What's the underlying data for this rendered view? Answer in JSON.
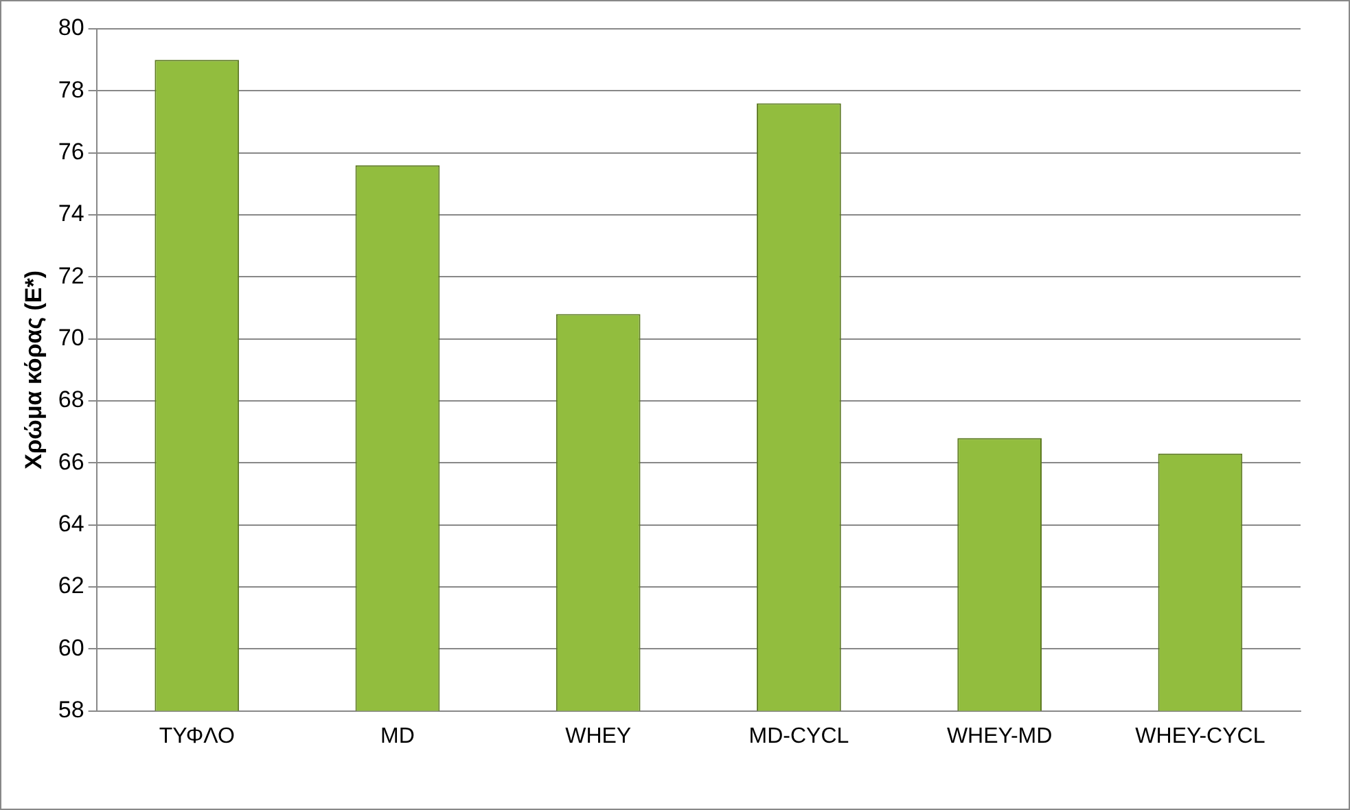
{
  "chart_data": {
    "type": "bar",
    "ylabel": "Χρώμα κόρας (E*)",
    "categories": [
      "ΤΥΦΛΟ",
      "MD",
      "WHEY",
      "MD-CYCL",
      "WHEY-MD",
      "WHEY-CYCL"
    ],
    "values": [
      79.0,
      75.6,
      70.8,
      77.6,
      66.8,
      66.3
    ],
    "color": "#92bd3e",
    "ylim": [
      58,
      80
    ],
    "yticks": [
      58,
      60,
      62,
      64,
      66,
      68,
      70,
      72,
      74,
      76,
      78,
      80
    ],
    "grid": "y",
    "legend": false
  }
}
